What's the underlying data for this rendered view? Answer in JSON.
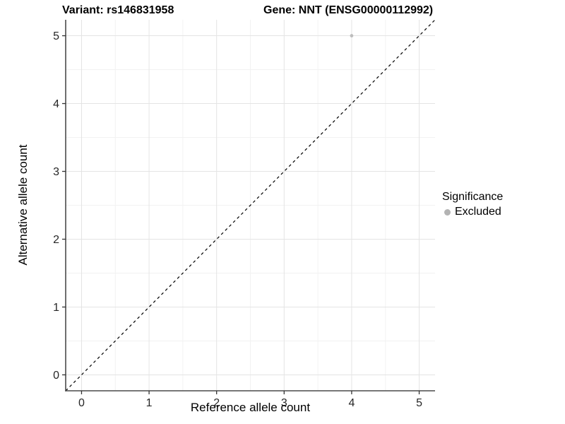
{
  "titles": {
    "left": "Variant: rs146831958",
    "right": "Gene: NNT (ENSG00000112992)"
  },
  "legend": {
    "title": "Significance",
    "items": [
      {
        "label": "Excluded",
        "color": "#b3b3b3"
      }
    ]
  },
  "chart_data": {
    "type": "scatter",
    "title": "Variant: rs146831958 — Gene: NNT (ENSG00000112992)",
    "xlabel": "Reference allele count",
    "ylabel": "Alternative allele count",
    "xlim": [
      -0.235,
      5.235
    ],
    "ylim": [
      -0.235,
      5.235
    ],
    "xticks": [
      0,
      1,
      2,
      3,
      4,
      5
    ],
    "yticks": [
      0,
      1,
      2,
      3,
      4,
      5
    ],
    "minor_breaks": [
      0.5,
      1.5,
      2.5,
      3.5,
      4.5
    ],
    "grid": true,
    "legend_position": "right",
    "series": [
      {
        "name": "Excluded",
        "color": "#bdbdbd",
        "points": [
          {
            "x": 4,
            "y": 5
          }
        ]
      }
    ],
    "reference_line": {
      "slope": 1,
      "intercept": 0,
      "style": "dashed",
      "color": "#000000"
    },
    "colors": {
      "grid_major": "#e4e4e4",
      "grid_minor": "#f2f2f2",
      "axis_line": "#4a4a4a",
      "tick_mark": "#333333",
      "tick_label": "#262626",
      "point": "#bdbdbd"
    }
  }
}
